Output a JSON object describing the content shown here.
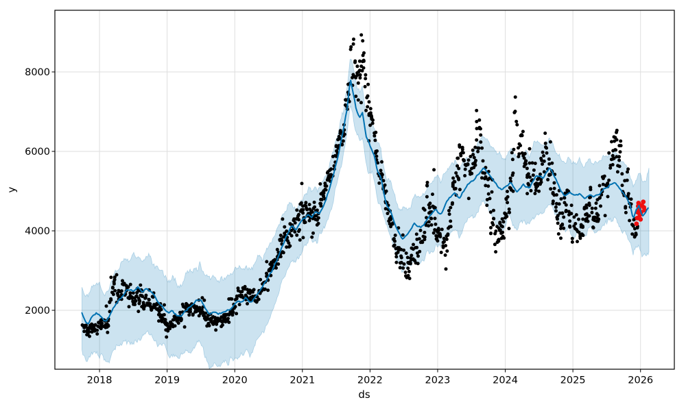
{
  "figure": {
    "kind": "prophet-forecast-plot",
    "background": "#ffffff"
  },
  "chart_data": {
    "type": "scatter",
    "title": "",
    "xlabel": "ds",
    "ylabel": "y",
    "grid": true,
    "legend": false,
    "x_range": [
      2017.34,
      2026.5
    ],
    "y_range": [
      517,
      9552
    ],
    "x_ticks": {
      "values": [
        2018,
        2019,
        2020,
        2021,
        2022,
        2023,
        2024,
        2025,
        2026
      ],
      "labels": [
        "2018",
        "2019",
        "2020",
        "2021",
        "2022",
        "2023",
        "2024",
        "2025",
        "2026"
      ]
    },
    "y_ticks": {
      "values": [
        2000,
        4000,
        6000,
        8000
      ],
      "labels": [
        "2000",
        "4000",
        "6000",
        "8000"
      ]
    },
    "colors": {
      "observations": "#000000",
      "recent_observations": "#ee1111",
      "forecast_line": "#0072B2",
      "band_fill": "rgba(0,114,178,0.2)",
      "band_edge": "rgba(0,114,178,0.25)",
      "grid": "#dedede",
      "spine": "#000000"
    },
    "series": [
      {
        "name": "observations (y)",
        "style": "black dots"
      },
      {
        "name": "forecast (yhat)",
        "style": "blue line"
      },
      {
        "name": "uncertainty interval",
        "style": "light blue band"
      },
      {
        "name": "recent observations",
        "style": "red dots"
      }
    ],
    "forecast_line_keypoints": [
      [
        2017.74,
        1950
      ],
      [
        2017.79,
        1750
      ],
      [
        2017.83,
        1690
      ],
      [
        2017.89,
        1860
      ],
      [
        2017.95,
        1960
      ],
      [
        2018.02,
        1850
      ],
      [
        2018.07,
        1720
      ],
      [
        2018.13,
        1800
      ],
      [
        2018.2,
        2050
      ],
      [
        2018.28,
        2250
      ],
      [
        2018.36,
        2400
      ],
      [
        2018.43,
        2520
      ],
      [
        2018.5,
        2460
      ],
      [
        2018.57,
        2560
      ],
      [
        2018.63,
        2470
      ],
      [
        2018.69,
        2570
      ],
      [
        2018.76,
        2480
      ],
      [
        2018.83,
        2310
      ],
      [
        2018.9,
        2140
      ],
      [
        2018.96,
        2000
      ],
      [
        2019.02,
        1930
      ],
      [
        2019.08,
        2010
      ],
      [
        2019.14,
        1870
      ],
      [
        2019.2,
        1830
      ],
      [
        2019.28,
        1990
      ],
      [
        2019.36,
        2120
      ],
      [
        2019.44,
        2290
      ],
      [
        2019.5,
        2240
      ],
      [
        2019.56,
        2040
      ],
      [
        2019.63,
        1880
      ],
      [
        2019.7,
        1970
      ],
      [
        2019.77,
        1900
      ],
      [
        2019.84,
        1990
      ],
      [
        2019.91,
        2030
      ],
      [
        2019.98,
        2130
      ],
      [
        2020.05,
        2260
      ],
      [
        2020.11,
        2190
      ],
      [
        2020.17,
        2300
      ],
      [
        2020.23,
        2210
      ],
      [
        2020.3,
        2340
      ],
      [
        2020.38,
        2500
      ],
      [
        2020.46,
        2700
      ],
      [
        2020.54,
        2950
      ],
      [
        2020.62,
        3250
      ],
      [
        2020.7,
        3600
      ],
      [
        2020.78,
        3950
      ],
      [
        2020.84,
        4100
      ],
      [
        2020.9,
        4000
      ],
      [
        2020.96,
        4180
      ],
      [
        2021.02,
        4300
      ],
      [
        2021.08,
        4420
      ],
      [
        2021.14,
        4350
      ],
      [
        2021.2,
        4480
      ],
      [
        2021.26,
        4450
      ],
      [
        2021.33,
        4700
      ],
      [
        2021.4,
        5080
      ],
      [
        2021.47,
        5500
      ],
      [
        2021.54,
        6000
      ],
      [
        2021.6,
        6450
      ],
      [
        2021.66,
        7050
      ],
      [
        2021.71,
        7860
      ],
      [
        2021.76,
        7400
      ],
      [
        2021.8,
        7000
      ],
      [
        2021.85,
        6850
      ],
      [
        2021.89,
        6980
      ],
      [
        2021.94,
        6400
      ],
      [
        2022.0,
        6150
      ],
      [
        2022.06,
        5900
      ],
      [
        2022.11,
        5500
      ],
      [
        2022.16,
        5330
      ],
      [
        2022.24,
        4690
      ],
      [
        2022.31,
        4470
      ],
      [
        2022.39,
        4070
      ],
      [
        2022.48,
        3780
      ],
      [
        2022.57,
        3950
      ],
      [
        2022.66,
        4210
      ],
      [
        2022.75,
        4070
      ],
      [
        2022.85,
        4290
      ],
      [
        2022.97,
        4520
      ],
      [
        2023.05,
        4410
      ],
      [
        2023.14,
        4760
      ],
      [
        2023.25,
        4950
      ],
      [
        2023.32,
        4810
      ],
      [
        2023.42,
        5100
      ],
      [
        2023.56,
        5330
      ],
      [
        2023.68,
        5590
      ],
      [
        2023.8,
        5330
      ],
      [
        2023.9,
        5100
      ],
      [
        2023.96,
        5020
      ],
      [
        2024.08,
        5210
      ],
      [
        2024.17,
        4980
      ],
      [
        2024.27,
        5190
      ],
      [
        2024.36,
        5070
      ],
      [
        2024.46,
        5380
      ],
      [
        2024.56,
        5330
      ],
      [
        2024.66,
        5570
      ],
      [
        2024.75,
        5280
      ],
      [
        2024.82,
        5020
      ],
      [
        2024.88,
        4900
      ],
      [
        2024.95,
        4980
      ],
      [
        2025.02,
        4860
      ],
      [
        2025.1,
        4950
      ],
      [
        2025.17,
        4850
      ],
      [
        2025.25,
        4930
      ],
      [
        2025.32,
        4850
      ],
      [
        2025.42,
        4980
      ],
      [
        2025.52,
        5120
      ],
      [
        2025.62,
        5240
      ],
      [
        2025.72,
        4980
      ],
      [
        2025.78,
        4850
      ],
      [
        2025.85,
        4670
      ],
      [
        2025.89,
        4320
      ],
      [
        2025.93,
        4500
      ],
      [
        2025.98,
        4620
      ],
      [
        2026.03,
        4370
      ],
      [
        2026.08,
        4480
      ],
      [
        2026.13,
        4680
      ]
    ],
    "band_halfwidth_keypoints": [
      [
        2017.75,
        680,
        900
      ],
      [
        2018.1,
        780,
        1050
      ],
      [
        2018.5,
        820,
        1300
      ],
      [
        2018.9,
        750,
        1100
      ],
      [
        2019.3,
        820,
        1050
      ],
      [
        2019.8,
        850,
        1300
      ],
      [
        2020.2,
        820,
        1350
      ],
      [
        2020.6,
        700,
        1000
      ],
      [
        2021.0,
        620,
        750
      ],
      [
        2021.4,
        600,
        680
      ],
      [
        2021.8,
        620,
        650
      ],
      [
        2022.2,
        620,
        680
      ],
      [
        2022.6,
        700,
        780
      ],
      [
        2023.0,
        780,
        800
      ],
      [
        2023.4,
        800,
        850
      ],
      [
        2023.8,
        830,
        880
      ],
      [
        2024.2,
        840,
        900
      ],
      [
        2024.6,
        800,
        880
      ],
      [
        2025.0,
        820,
        900
      ],
      [
        2025.4,
        780,
        850
      ],
      [
        2025.8,
        800,
        900
      ],
      [
        2026.0,
        830,
        1050
      ],
      [
        2026.13,
        870,
        1200
      ]
    ],
    "observations_profile_keypoints": [
      [
        2017.75,
        1530,
        90
      ],
      [
        2017.85,
        1520,
        80
      ],
      [
        2017.95,
        1560,
        80
      ],
      [
        2018.05,
        1650,
        100
      ],
      [
        2018.12,
        1750,
        120
      ],
      [
        2018.2,
        2450,
        280
      ],
      [
        2018.28,
        2400,
        180
      ],
      [
        2018.36,
        2550,
        160
      ],
      [
        2018.45,
        2400,
        150
      ],
      [
        2018.55,
        2300,
        140
      ],
      [
        2018.65,
        2250,
        130
      ],
      [
        2018.75,
        2250,
        140
      ],
      [
        2018.85,
        2050,
        140
      ],
      [
        2018.95,
        1750,
        140
      ],
      [
        2019.02,
        1550,
        90
      ],
      [
        2019.1,
        1700,
        110
      ],
      [
        2019.2,
        1850,
        120
      ],
      [
        2019.3,
        2050,
        120
      ],
      [
        2019.4,
        2100,
        130
      ],
      [
        2019.5,
        1950,
        120
      ],
      [
        2019.6,
        1750,
        110
      ],
      [
        2019.7,
        1700,
        100
      ],
      [
        2019.8,
        1780,
        100
      ],
      [
        2019.9,
        1850,
        110
      ],
      [
        2020.0,
        2100,
        130
      ],
      [
        2020.1,
        2400,
        140
      ],
      [
        2020.2,
        2350,
        130
      ],
      [
        2020.3,
        2300,
        130
      ],
      [
        2020.4,
        2600,
        150
      ],
      [
        2020.5,
        2900,
        160
      ],
      [
        2020.6,
        3300,
        170
      ],
      [
        2020.7,
        3700,
        180
      ],
      [
        2020.8,
        4100,
        180
      ],
      [
        2020.9,
        4250,
        200
      ],
      [
        2021.0,
        4500,
        200
      ],
      [
        2021.1,
        4550,
        220
      ],
      [
        2021.2,
        4400,
        220
      ],
      [
        2021.3,
        4900,
        200
      ],
      [
        2021.4,
        5300,
        200
      ],
      [
        2021.5,
        5900,
        220
      ],
      [
        2021.6,
        6550,
        250
      ],
      [
        2021.67,
        7300,
        300
      ],
      [
        2021.72,
        8400,
        350
      ],
      [
        2021.78,
        8100,
        300
      ],
      [
        2021.85,
        8000,
        300
      ],
      [
        2021.9,
        8200,
        280
      ],
      [
        2021.95,
        7500,
        300
      ],
      [
        2022.0,
        6900,
        250
      ],
      [
        2022.06,
        6400,
        220
      ],
      [
        2022.12,
        5700,
        220
      ],
      [
        2022.2,
        5200,
        220
      ],
      [
        2022.28,
        4500,
        250
      ],
      [
        2022.36,
        3700,
        250
      ],
      [
        2022.45,
        3300,
        220
      ],
      [
        2022.55,
        3150,
        200
      ],
      [
        2022.65,
        3400,
        220
      ],
      [
        2022.75,
        3700,
        250
      ],
      [
        2022.85,
        4500,
        300
      ],
      [
        2022.95,
        4400,
        350
      ],
      [
        2023.05,
        3700,
        280
      ],
      [
        2023.12,
        3600,
        220
      ],
      [
        2023.2,
        4600,
        280
      ],
      [
        2023.3,
        5600,
        350
      ],
      [
        2023.38,
        6000,
        300
      ],
      [
        2023.46,
        5500,
        280
      ],
      [
        2023.55,
        5900,
        300
      ],
      [
        2023.62,
        6200,
        300
      ],
      [
        2023.7,
        5600,
        300
      ],
      [
        2023.78,
        4600,
        350
      ],
      [
        2023.86,
        3800,
        250
      ],
      [
        2023.93,
        3900,
        250
      ],
      [
        2024.0,
        4400,
        300
      ],
      [
        2024.08,
        5300,
        350
      ],
      [
        2024.15,
        6300,
        350
      ],
      [
        2024.22,
        6200,
        300
      ],
      [
        2024.3,
        5700,
        300
      ],
      [
        2024.38,
        5300,
        300
      ],
      [
        2024.46,
        5100,
        300
      ],
      [
        2024.54,
        5600,
        350
      ],
      [
        2024.6,
        6100,
        250
      ],
      [
        2024.68,
        5200,
        350
      ],
      [
        2024.76,
        4500,
        300
      ],
      [
        2024.84,
        4300,
        250
      ],
      [
        2024.92,
        4800,
        300
      ],
      [
        2025.0,
        4100,
        300
      ],
      [
        2025.08,
        3900,
        250
      ],
      [
        2025.16,
        4300,
        250
      ],
      [
        2025.24,
        4500,
        250
      ],
      [
        2025.32,
        4400,
        250
      ],
      [
        2025.4,
        4600,
        250
      ],
      [
        2025.48,
        5100,
        300
      ],
      [
        2025.56,
        6000,
        350
      ],
      [
        2025.62,
        6300,
        300
      ],
      [
        2025.7,
        5600,
        300
      ],
      [
        2025.78,
        4900,
        300
      ],
      [
        2025.85,
        4400,
        250
      ],
      [
        2025.92,
        4200,
        200
      ],
      [
        2025.96,
        4100,
        150
      ]
    ],
    "red_points": [
      [
        2025.94,
        4180
      ],
      [
        2025.95,
        4320
      ],
      [
        2025.955,
        4470
      ],
      [
        2025.965,
        4620
      ],
      [
        2025.97,
        4700
      ],
      [
        2025.98,
        4560
      ],
      [
        2025.99,
        4400
      ],
      [
        2026.0,
        4290
      ],
      [
        2026.01,
        4470
      ],
      [
        2026.02,
        4640
      ],
      [
        2026.04,
        4730
      ],
      [
        2026.05,
        4590
      ],
      [
        2026.06,
        4520
      ]
    ],
    "generation": {
      "seed": 11,
      "obs_start": 2017.75,
      "obs_end": 2025.96,
      "step_days": 7,
      "points_min": 2,
      "points_max": 4,
      "t_jitter": 0.013,
      "outlier_prob": 0.035,
      "marker_radius": 2.5,
      "red_marker_radius": 3.4,
      "line_width": 2,
      "band_jitter": 42,
      "line_jitter": 14,
      "band_step": 0.013,
      "line_start": 2017.74,
      "line_end": 2026.13
    }
  }
}
